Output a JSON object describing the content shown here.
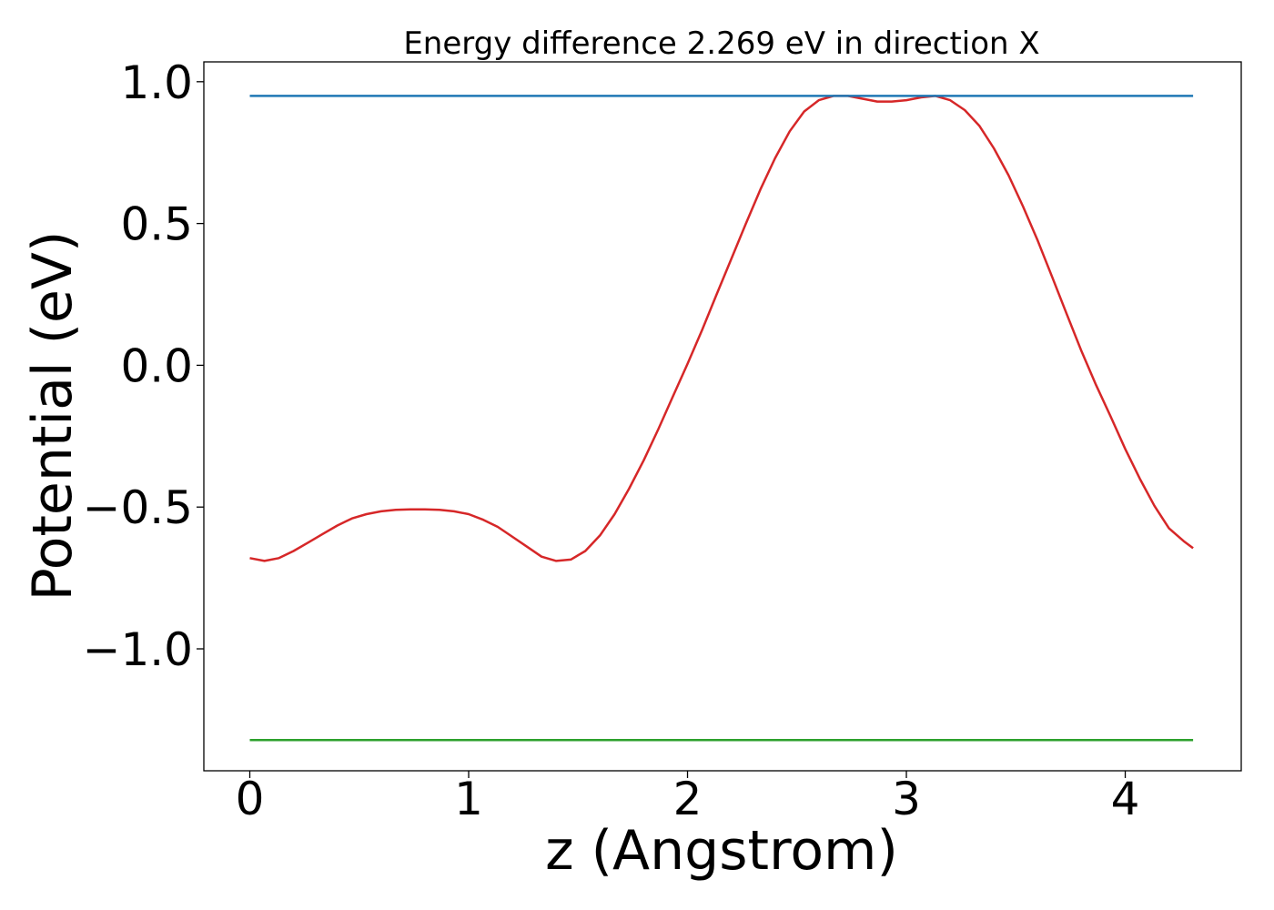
{
  "chart_data": {
    "type": "line",
    "title": "Energy difference 2.269 eV in direction X",
    "xlabel": "z (Angstrom)",
    "ylabel": "Potential (eV)",
    "xlim": [
      -0.21,
      4.53
    ],
    "ylim": [
      -1.43,
      1.07
    ],
    "x_ticks": [
      0,
      1,
      2,
      3,
      4
    ],
    "x_tick_labels": [
      "0",
      "1",
      "2",
      "3",
      "4"
    ],
    "y_ticks": [
      -1.0,
      -0.5,
      0.0,
      0.5,
      1.0
    ],
    "y_tick_labels": [
      "−1.0",
      "−0.5",
      "0.0",
      "0.5",
      "1.0"
    ],
    "grid": false,
    "series": [
      {
        "color": "#d62728",
        "x": [
          0.0,
          0.067,
          0.133,
          0.2,
          0.267,
          0.333,
          0.4,
          0.467,
          0.533,
          0.6,
          0.667,
          0.733,
          0.8,
          0.867,
          0.933,
          1.0,
          1.067,
          1.133,
          1.2,
          1.267,
          1.333,
          1.4,
          1.467,
          1.533,
          1.6,
          1.667,
          1.733,
          1.8,
          1.867,
          1.933,
          2.0,
          2.067,
          2.133,
          2.2,
          2.267,
          2.333,
          2.4,
          2.467,
          2.533,
          2.6,
          2.667,
          2.733,
          2.8,
          2.867,
          2.933,
          3.0,
          3.067,
          3.133,
          3.2,
          3.267,
          3.333,
          3.4,
          3.467,
          3.533,
          3.6,
          3.667,
          3.733,
          3.8,
          3.867,
          3.933,
          4.0,
          4.067,
          4.133,
          4.2,
          4.267,
          4.31
        ],
        "y": [
          -0.68,
          -0.69,
          -0.68,
          -0.655,
          -0.625,
          -0.595,
          -0.565,
          -0.54,
          -0.525,
          -0.515,
          -0.51,
          -0.508,
          -0.508,
          -0.51,
          -0.515,
          -0.525,
          -0.545,
          -0.57,
          -0.605,
          -0.64,
          -0.675,
          -0.69,
          -0.685,
          -0.655,
          -0.6,
          -0.525,
          -0.435,
          -0.335,
          -0.225,
          -0.11,
          0.005,
          0.125,
          0.25,
          0.375,
          0.5,
          0.62,
          0.73,
          0.825,
          0.895,
          0.935,
          0.95,
          0.95,
          0.94,
          0.93,
          0.93,
          0.935,
          0.945,
          0.95,
          0.935,
          0.9,
          0.845,
          0.765,
          0.67,
          0.56,
          0.44,
          0.31,
          0.18,
          0.05,
          -0.07,
          -0.18,
          -0.295,
          -0.4,
          -0.495,
          -0.575,
          -0.62,
          -0.645
        ]
      },
      {
        "color": "#1f77b4",
        "x": [
          0.0,
          4.31
        ],
        "y": [
          0.95,
          0.95
        ]
      },
      {
        "color": "#2ca02c",
        "x": [
          0.0,
          4.31
        ],
        "y": [
          -1.322,
          -1.322
        ]
      }
    ]
  }
}
